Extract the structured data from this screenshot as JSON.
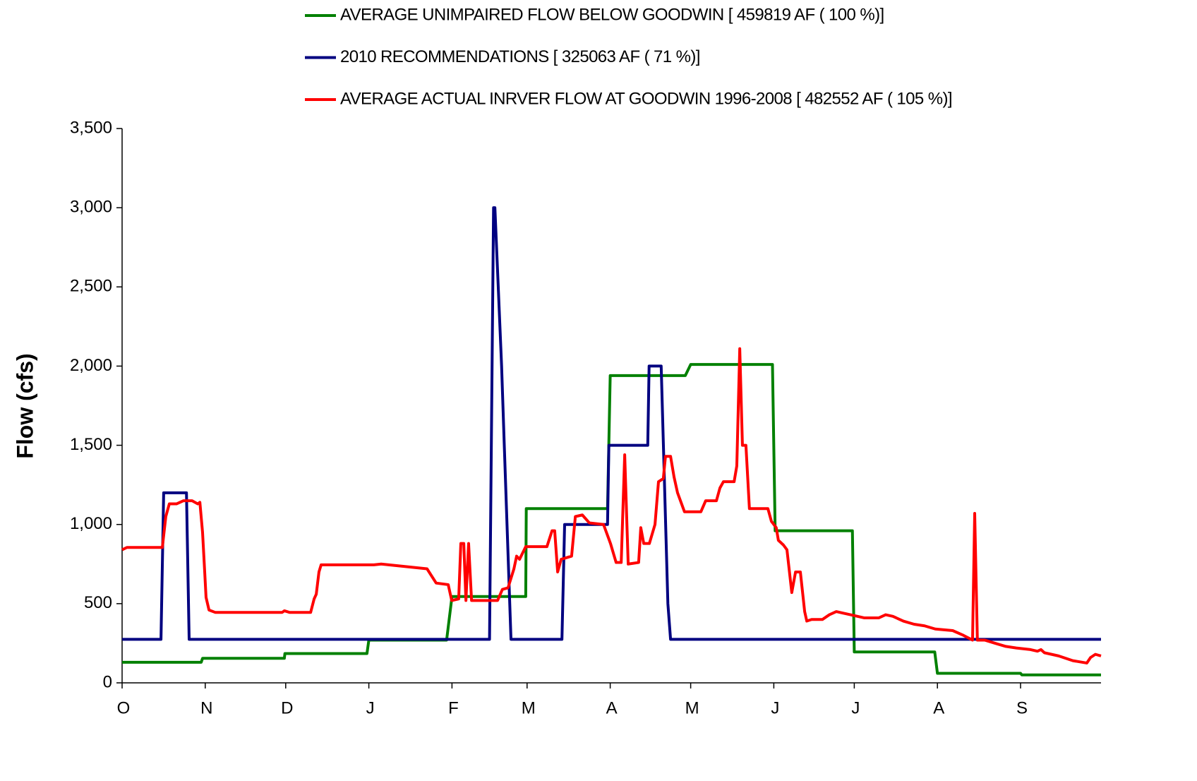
{
  "chart_data": {
    "type": "line",
    "y_label": "Flow (cfs)",
    "xlim": [
      0,
      365
    ],
    "xticks": [
      {
        "value": 0,
        "label": "O"
      },
      {
        "value": 31,
        "label": "N"
      },
      {
        "value": 61,
        "label": "D"
      },
      {
        "value": 92,
        "label": "J"
      },
      {
        "value": 123,
        "label": "F"
      },
      {
        "value": 151,
        "label": "M"
      },
      {
        "value": 182,
        "label": "A"
      },
      {
        "value": 212,
        "label": "M"
      },
      {
        "value": 243,
        "label": "J"
      },
      {
        "value": 273,
        "label": "J"
      },
      {
        "value": 304,
        "label": "A"
      },
      {
        "value": 335,
        "label": "S"
      }
    ],
    "ylim": [
      0,
      3500
    ],
    "yticks": [
      0,
      500,
      {
        "value": 1000,
        "label": "1,000"
      },
      {
        "value": 1500,
        "label": "1,500"
      },
      {
        "value": 2000,
        "label": "2,000"
      },
      {
        "value": 2500,
        "label": "2,500"
      },
      {
        "value": 3000,
        "label": "3,000"
      },
      {
        "value": 3500,
        "label": "3,500"
      }
    ],
    "grid": false,
    "legend": "top",
    "series": [
      {
        "name": "AVERAGE UNIMPAIRED FLOW BELOW GOODWIN [ 459819 AF ( 100 %)]",
        "color": "#008000",
        "x": [
          0,
          29.5,
          30,
          60.5,
          60.7,
          91.3,
          92,
          121,
          123,
          150.5,
          150.7,
          181,
          182,
          210,
          212,
          242.5,
          243.5,
          272.3,
          273,
          303,
          304,
          335,
          335.5,
          365
        ],
        "values": [
          130,
          130,
          155,
          155,
          185,
          185,
          270,
          270,
          545,
          545,
          1100,
          1100,
          1940,
          1940,
          2010,
          2010,
          960,
          960,
          195,
          195,
          60,
          60,
          50,
          50
        ]
      },
      {
        "name": "2010 RECOMMENDATIONS [ 325063 AF ( 71 %)]",
        "color": "#000080",
        "x": [
          0,
          14.5,
          15.5,
          24,
          25,
          137,
          138.5,
          139,
          141.5,
          142.5,
          145,
          164,
          165,
          181,
          181.5,
          196,
          196.5,
          201,
          203.5,
          204.5,
          365
        ],
        "values": [
          275,
          275,
          1200,
          1200,
          275,
          275,
          3000,
          3000,
          2000,
          1500,
          275,
          275,
          1000,
          1000,
          1500,
          1500,
          2000,
          2000,
          500,
          275,
          275
        ]
      },
      {
        "name": "AVERAGE ACTUAL INRVER FLOW AT GOODWIN 1996-2008 [ 482552 AF ( 105 %)]",
        "color": "#ff0000",
        "x": [
          0,
          1.8,
          7.1,
          15,
          16.3,
          17.6,
          20.3,
          22.9,
          26.1,
          28.2,
          29,
          30,
          30.8,
          31.3,
          32.4,
          34.7,
          59.7,
          60.5,
          62.4,
          70.3,
          71.6,
          72.4,
          73.4,
          74.2,
          78.2,
          93.9,
          96.6,
          113.7,
          117.1,
          121.6,
          122.9,
          125.5,
          126.3,
          127.4,
          128.2,
          129.2,
          130.3,
          140,
          141.8,
          143.9,
          146.1,
          147.1,
          148.2,
          150.5,
          158.4,
          160.3,
          161.3,
          162.4,
          163.7,
          167.6,
          169,
          171.6,
          174.2,
          179.5,
          182.1,
          184.2,
          186.1,
          187.4,
          188.7,
          192.6,
          193.4,
          194.5,
          196.6,
          198.7,
          200,
          201.8,
          202.6,
          204.5,
          205.8,
          207.1,
          209.7,
          215.8,
          217.6,
          221.6,
          222.9,
          224.2,
          228.2,
          229.2,
          230.3,
          231.3,
          232.6,
          233.9,
          240.8,
          242.1,
          243.9,
          244.7,
          246.6,
          247.9,
          249.7,
          251.1,
          252.9,
          254.5,
          255.3,
          257.1,
          261.1,
          263.7,
          266.3,
          268.9,
          271.6,
          274.2,
          276.8,
          282.1,
          284.7,
          287.4,
          291.3,
          295.3,
          299.2,
          303.2,
          309.7,
          313.7,
          317.1,
          317.9,
          318.9,
          321.6,
          325.5,
          329.5,
          333.4,
          338.7,
          341.3,
          342.6,
          343.9,
          349.2,
          354.5,
          359.7,
          361.1,
          362.9,
          365
        ],
        "values": [
          840,
          855,
          855,
          855,
          1050,
          1130,
          1130,
          1150,
          1150,
          1130,
          1140,
          950,
          700,
          540,
          460,
          445,
          445,
          455,
          445,
          445,
          530,
          560,
          700,
          745,
          745,
          745,
          750,
          720,
          630,
          620,
          520,
          530,
          880,
          880,
          520,
          880,
          520,
          520,
          590,
          600,
          720,
          800,
          780,
          860,
          860,
          960,
          960,
          700,
          780,
          800,
          1050,
          1060,
          1010,
          1000,
          880,
          760,
          760,
          1440,
          750,
          760,
          980,
          880,
          880,
          1000,
          1270,
          1290,
          1430,
          1430,
          1300,
          1200,
          1080,
          1080,
          1150,
          1150,
          1230,
          1270,
          1270,
          1370,
          2110,
          1500,
          1500,
          1100,
          1100,
          1020,
          980,
          900,
          870,
          840,
          570,
          700,
          700,
          450,
          390,
          400,
          400,
          430,
          450,
          440,
          430,
          420,
          410,
          410,
          430,
          420,
          390,
          370,
          360,
          340,
          330,
          300,
          270,
          1070,
          270,
          270,
          250,
          230,
          220,
          210,
          200,
          210,
          190,
          170,
          140,
          125,
          160,
          180,
          170
        ]
      }
    ]
  }
}
